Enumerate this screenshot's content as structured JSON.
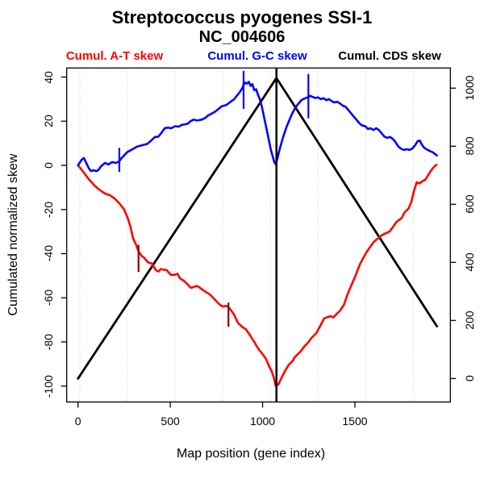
{
  "title": "Streptococcus pyogenes SSI-1",
  "subtitle": "NC_004606",
  "legend": [
    {
      "label": "Cumul. A-T skew",
      "color": "#ff0000"
    },
    {
      "label": "Cumul. G-C skew",
      "color": "#0000ff"
    },
    {
      "label": "Cumul. CDS skew",
      "color": "#000000"
    }
  ],
  "chart_data": {
    "type": "line",
    "title": "Streptococcus pyogenes SSI-1",
    "subtitle": "NC_004606",
    "xlabel": "Map position (gene index)",
    "ylabel_left": "Cumulated normalized skew",
    "grid_on": true,
    "legend_position": "top",
    "x_axis": {
      "ticks": [
        0,
        500,
        1000,
        1500
      ],
      "range": [
        -61,
        2017
      ]
    },
    "y_left": {
      "ticks": [
        40,
        20,
        0,
        -20,
        -40,
        -60,
        -80,
        -100
      ],
      "range": [
        -107.2,
        44.1
      ]
    },
    "y_right": {
      "ticks": [
        0,
        200,
        400,
        600,
        800,
        1000
      ],
      "range": [
        -80.6,
        1069.4
      ]
    },
    "grid": {
      "x_values": [
        10,
        268,
        526,
        784,
        1042,
        1300,
        1558,
        1816
      ],
      "color": "#c9c9c9"
    },
    "marker_line": {
      "x": 1075,
      "color": "#000000"
    },
    "series": [
      {
        "name": "Cumul. CDS skew",
        "color": "#000000",
        "axis": "right",
        "width": 2.8,
        "points": [
          [
            0,
            0
          ],
          [
            1075,
            1035
          ],
          [
            1944,
            180
          ]
        ]
      },
      {
        "name": "Cumul. A-T skew",
        "color": "#ff0000",
        "axis": "left",
        "width": 2.6,
        "points": [
          [
            0,
            0
          ],
          [
            15,
            -1.5
          ],
          [
            32,
            -3.3
          ],
          [
            58,
            -6.2
          ],
          [
            89,
            -9.1
          ],
          [
            115,
            -11
          ],
          [
            146,
            -12.8
          ],
          [
            172,
            -13.5
          ],
          [
            198,
            -15
          ],
          [
            224,
            -17.2
          ],
          [
            250,
            -20
          ],
          [
            270,
            -24
          ],
          [
            285,
            -28
          ],
          [
            298,
            -33
          ],
          [
            315,
            -36
          ],
          [
            328,
            -39
          ],
          [
            345,
            -41
          ],
          [
            360,
            -42
          ],
          [
            378,
            -43.9
          ],
          [
            400,
            -44.5
          ],
          [
            422,
            -47.5
          ],
          [
            437,
            -48.1
          ],
          [
            448,
            -47
          ],
          [
            459,
            -47.2
          ],
          [
            481,
            -47.5
          ],
          [
            502,
            -49.6
          ],
          [
            524,
            -49.6
          ],
          [
            539,
            -49.1
          ],
          [
            553,
            -51.2
          ],
          [
            575,
            -52.4
          ],
          [
            597,
            -54.2
          ],
          [
            612,
            -55.5
          ],
          [
            626,
            -55.2
          ],
          [
            641,
            -54.6
          ],
          [
            655,
            -55.1
          ],
          [
            670,
            -56.1
          ],
          [
            692,
            -57.3
          ],
          [
            714,
            -58.5
          ],
          [
            736,
            -60.3
          ],
          [
            757,
            -62.2
          ],
          [
            772,
            -63.4
          ],
          [
            786,
            -64
          ],
          [
            801,
            -63.7
          ],
          [
            815,
            -64.2
          ],
          [
            830,
            -65.8
          ],
          [
            845,
            -67.6
          ],
          [
            866,
            -71.3
          ],
          [
            888,
            -73.1
          ],
          [
            910,
            -74.3
          ],
          [
            932,
            -77
          ],
          [
            955,
            -80
          ],
          [
            976,
            -83
          ],
          [
            1000,
            -85.5
          ],
          [
            1019,
            -87.8
          ],
          [
            1035,
            -91
          ],
          [
            1049,
            -93.2
          ],
          [
            1063,
            -96.9
          ],
          [
            1071,
            -99.9
          ],
          [
            1085,
            -99.3
          ],
          [
            1099,
            -96.9
          ],
          [
            1121,
            -93.2
          ],
          [
            1143,
            -90.2
          ],
          [
            1165,
            -88.4
          ],
          [
            1172,
            -87.1
          ],
          [
            1194,
            -85.3
          ],
          [
            1208,
            -84.1
          ],
          [
            1223,
            -82.3
          ],
          [
            1245,
            -80.4
          ],
          [
            1267,
            -78
          ],
          [
            1289,
            -76.2
          ],
          [
            1310,
            -73.1
          ],
          [
            1325,
            -70.7
          ],
          [
            1332,
            -69.5
          ],
          [
            1347,
            -68.9
          ],
          [
            1369,
            -68.3
          ],
          [
            1383,
            -68.9
          ],
          [
            1398,
            -67.6
          ],
          [
            1420,
            -65.8
          ],
          [
            1441,
            -63
          ],
          [
            1460,
            -58.5
          ],
          [
            1480,
            -54.5
          ],
          [
            1500,
            -50.6
          ],
          [
            1529,
            -44.5
          ],
          [
            1561,
            -39.6
          ],
          [
            1602,
            -34.7
          ],
          [
            1645,
            -31.7
          ],
          [
            1689,
            -29.9
          ],
          [
            1726,
            -25.6
          ],
          [
            1754,
            -23.8
          ],
          [
            1769,
            -21.3
          ],
          [
            1791,
            -19.5
          ],
          [
            1806,
            -16.5
          ],
          [
            1820,
            -11.6
          ],
          [
            1835,
            -7.7
          ],
          [
            1849,
            -8.2
          ],
          [
            1864,
            -7.3
          ],
          [
            1881,
            -6.5
          ],
          [
            1900,
            -4
          ],
          [
            1922,
            -1.2
          ],
          [
            1941,
            0.2
          ]
        ],
        "spikes": [
          {
            "x": 328,
            "from": -36,
            "to": -48.3,
            "color": "#8b0000"
          },
          {
            "x": 815,
            "from": -62.2,
            "to": -73.1,
            "color": "#8b0000"
          }
        ]
      },
      {
        "name": "Cumul. G-C skew",
        "color": "#0000ff",
        "axis": "left",
        "width": 2.6,
        "points": [
          [
            0,
            0
          ],
          [
            20,
            2.5
          ],
          [
            32,
            3.3
          ],
          [
            45,
            1
          ],
          [
            60,
            -1.5
          ],
          [
            70,
            -2.6
          ],
          [
            85,
            -2.2
          ],
          [
            100,
            -2.6
          ],
          [
            110,
            -2.2
          ],
          [
            125,
            -0.4
          ],
          [
            146,
            1.1
          ],
          [
            165,
            0.4
          ],
          [
            185,
            1.5
          ],
          [
            205,
            1.1
          ],
          [
            224,
            1.8
          ],
          [
            233,
            3
          ],
          [
            268,
            6.1
          ],
          [
            290,
            7
          ],
          [
            320,
            8.5
          ],
          [
            345,
            9
          ],
          [
            377,
            9.8
          ],
          [
            400,
            11.5
          ],
          [
            416,
            12.8
          ],
          [
            435,
            13
          ],
          [
            451,
            14.6
          ],
          [
            470,
            16.8
          ],
          [
            486,
            17.1
          ],
          [
            505,
            16.8
          ],
          [
            526,
            17.7
          ],
          [
            545,
            17.5
          ],
          [
            561,
            18.3
          ],
          [
            580,
            18.6
          ],
          [
            595,
            18.9
          ],
          [
            610,
            20
          ],
          [
            626,
            20.7
          ],
          [
            645,
            20.3
          ],
          [
            670,
            20.7
          ],
          [
            690,
            21.5
          ],
          [
            705,
            22.6
          ],
          [
            725,
            23.5
          ],
          [
            744,
            24.4
          ],
          [
            760,
            25.5
          ],
          [
            779,
            26.8
          ],
          [
            800,
            27.2
          ],
          [
            814,
            28
          ],
          [
            830,
            29
          ],
          [
            845,
            29.9
          ],
          [
            860,
            31.5
          ],
          [
            875,
            33
          ],
          [
            890,
            35
          ],
          [
            897,
            36.5
          ],
          [
            905,
            37.5
          ],
          [
            915,
            37
          ],
          [
            925,
            37.8
          ],
          [
            935,
            36
          ],
          [
            945,
            36.8
          ],
          [
            955,
            34
          ],
          [
            965,
            34.5
          ],
          [
            975,
            32
          ],
          [
            985,
            30
          ],
          [
            995,
            27
          ],
          [
            1005,
            23
          ],
          [
            1015,
            19
          ],
          [
            1025,
            15
          ],
          [
            1035,
            11
          ],
          [
            1045,
            7
          ],
          [
            1055,
            4
          ],
          [
            1063,
            1.5
          ],
          [
            1071,
            0.5
          ],
          [
            1080,
            3
          ],
          [
            1090,
            6.5
          ],
          [
            1100,
            9.5
          ],
          [
            1110,
            12.5
          ],
          [
            1120,
            15
          ],
          [
            1130,
            17.5
          ],
          [
            1140,
            19.5
          ],
          [
            1150,
            21.5
          ],
          [
            1160,
            23.5
          ],
          [
            1170,
            25
          ],
          [
            1180,
            26.5
          ],
          [
            1190,
            27.5
          ],
          [
            1200,
            28.5
          ],
          [
            1210,
            29.5
          ],
          [
            1220,
            30
          ],
          [
            1235,
            30.5
          ],
          [
            1248,
            31
          ],
          [
            1258,
            31.5
          ],
          [
            1270,
            31
          ],
          [
            1285,
            30.5
          ],
          [
            1300,
            30.8
          ],
          [
            1315,
            30
          ],
          [
            1330,
            30.4
          ],
          [
            1345,
            29.5
          ],
          [
            1360,
            30
          ],
          [
            1375,
            29
          ],
          [
            1390,
            28.5
          ],
          [
            1405,
            28.8
          ],
          [
            1420,
            28
          ],
          [
            1435,
            27
          ],
          [
            1450,
            26.5
          ],
          [
            1465,
            25
          ],
          [
            1480,
            23.5
          ],
          [
            1495,
            22
          ],
          [
            1510,
            20.5
          ],
          [
            1525,
            19
          ],
          [
            1540,
            18
          ],
          [
            1555,
            17.8
          ],
          [
            1570,
            16.5
          ],
          [
            1585,
            16.8
          ],
          [
            1600,
            16
          ],
          [
            1615,
            16.8
          ],
          [
            1630,
            16
          ],
          [
            1645,
            14.5
          ],
          [
            1660,
            13
          ],
          [
            1675,
            12.5
          ],
          [
            1690,
            12.8
          ],
          [
            1705,
            12
          ],
          [
            1720,
            10.5
          ],
          [
            1735,
            8.5
          ],
          [
            1750,
            7.5
          ],
          [
            1765,
            7
          ],
          [
            1780,
            7.3
          ],
          [
            1795,
            7
          ],
          [
            1810,
            7.5
          ],
          [
            1825,
            9
          ],
          [
            1840,
            11
          ],
          [
            1852,
            11.2
          ],
          [
            1862,
            9.5
          ],
          [
            1875,
            8
          ],
          [
            1890,
            7.2
          ],
          [
            1905,
            6.5
          ],
          [
            1920,
            6
          ],
          [
            1944,
            4.5
          ]
        ],
        "spikes": [
          {
            "x": 224,
            "from": -3,
            "to": 7.9,
            "color": "#0000ff"
          },
          {
            "x": 897,
            "from": 25.6,
            "to": 42.8,
            "color": "#0000ff"
          },
          {
            "x": 1248,
            "from": 21.3,
            "to": 41.4,
            "color": "#0000ff"
          }
        ]
      }
    ]
  }
}
